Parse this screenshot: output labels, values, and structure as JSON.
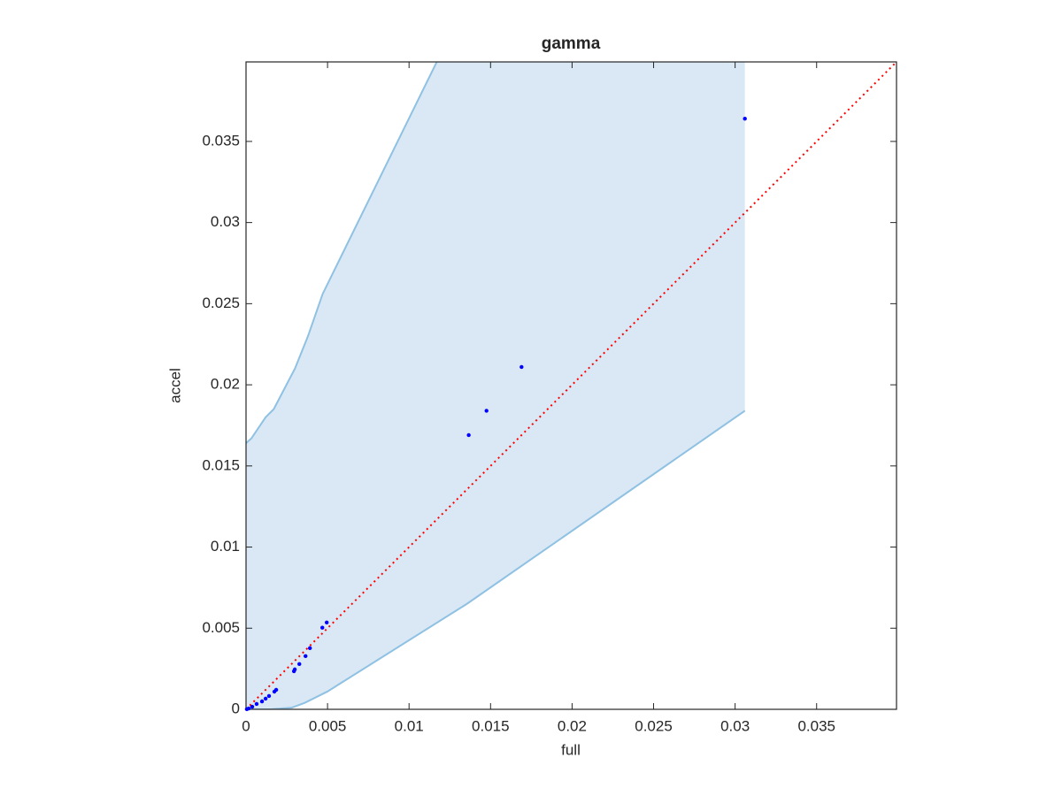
{
  "chart_data": {
    "type": "scatter",
    "title": "gamma",
    "x_label": "full",
    "y_label": "accel",
    "xlim": [
      0,
      0.0399
    ],
    "ylim": [
      0,
      0.0399
    ],
    "xticks": [
      0,
      0.005,
      0.01,
      0.015,
      0.02,
      0.025,
      0.03,
      0.035
    ],
    "yticks": [
      0,
      0.005,
      0.01,
      0.015,
      0.02,
      0.025,
      0.03,
      0.035
    ],
    "color": "#0000ff",
    "x": [
      0.0306,
      0.0169,
      0.01475,
      0.01366,
      0.00495,
      0.00468,
      0.00392,
      0.00365,
      0.00327,
      0.00299,
      0.00294,
      0.00185,
      0.00174,
      0.00141,
      0.0012,
      0.00098,
      0.00065,
      0.00038,
      0.00016,
      5e-05
    ],
    "y": [
      0.0364,
      0.0211,
      0.0184,
      0.0169,
      0.00535,
      0.00503,
      0.00377,
      0.00328,
      0.00279,
      0.00246,
      0.00235,
      0.0012,
      0.00109,
      0.00082,
      0.00066,
      0.00049,
      0.00033,
      0.00016,
      5e-05,
      1e-05
    ],
    "band": {
      "fill": "#d9e8f4",
      "edge_color": "#8fc1e3",
      "upper_x": [
        0,
        0.00033,
        0.0012,
        0.0017,
        0.003,
        0.0038,
        0.0047,
        0.0117,
        0.0306
      ],
      "upper_y": [
        0.0164,
        0.0167,
        0.018,
        0.0185,
        0.021,
        0.023,
        0.0256,
        0.0399,
        0.0399
      ],
      "lower_x": [
        0,
        0.0015,
        0.0028,
        0.0036,
        0.005,
        0.01355,
        0.0306
      ],
      "lower_y": [
        0,
        0,
        0.0001,
        0.0004,
        0.0011,
        0.0065,
        0.0184
      ]
    },
    "reference_line": {
      "color": "#ff0000",
      "x": [
        0,
        0.0399
      ],
      "y": [
        0,
        0.0399
      ]
    }
  }
}
